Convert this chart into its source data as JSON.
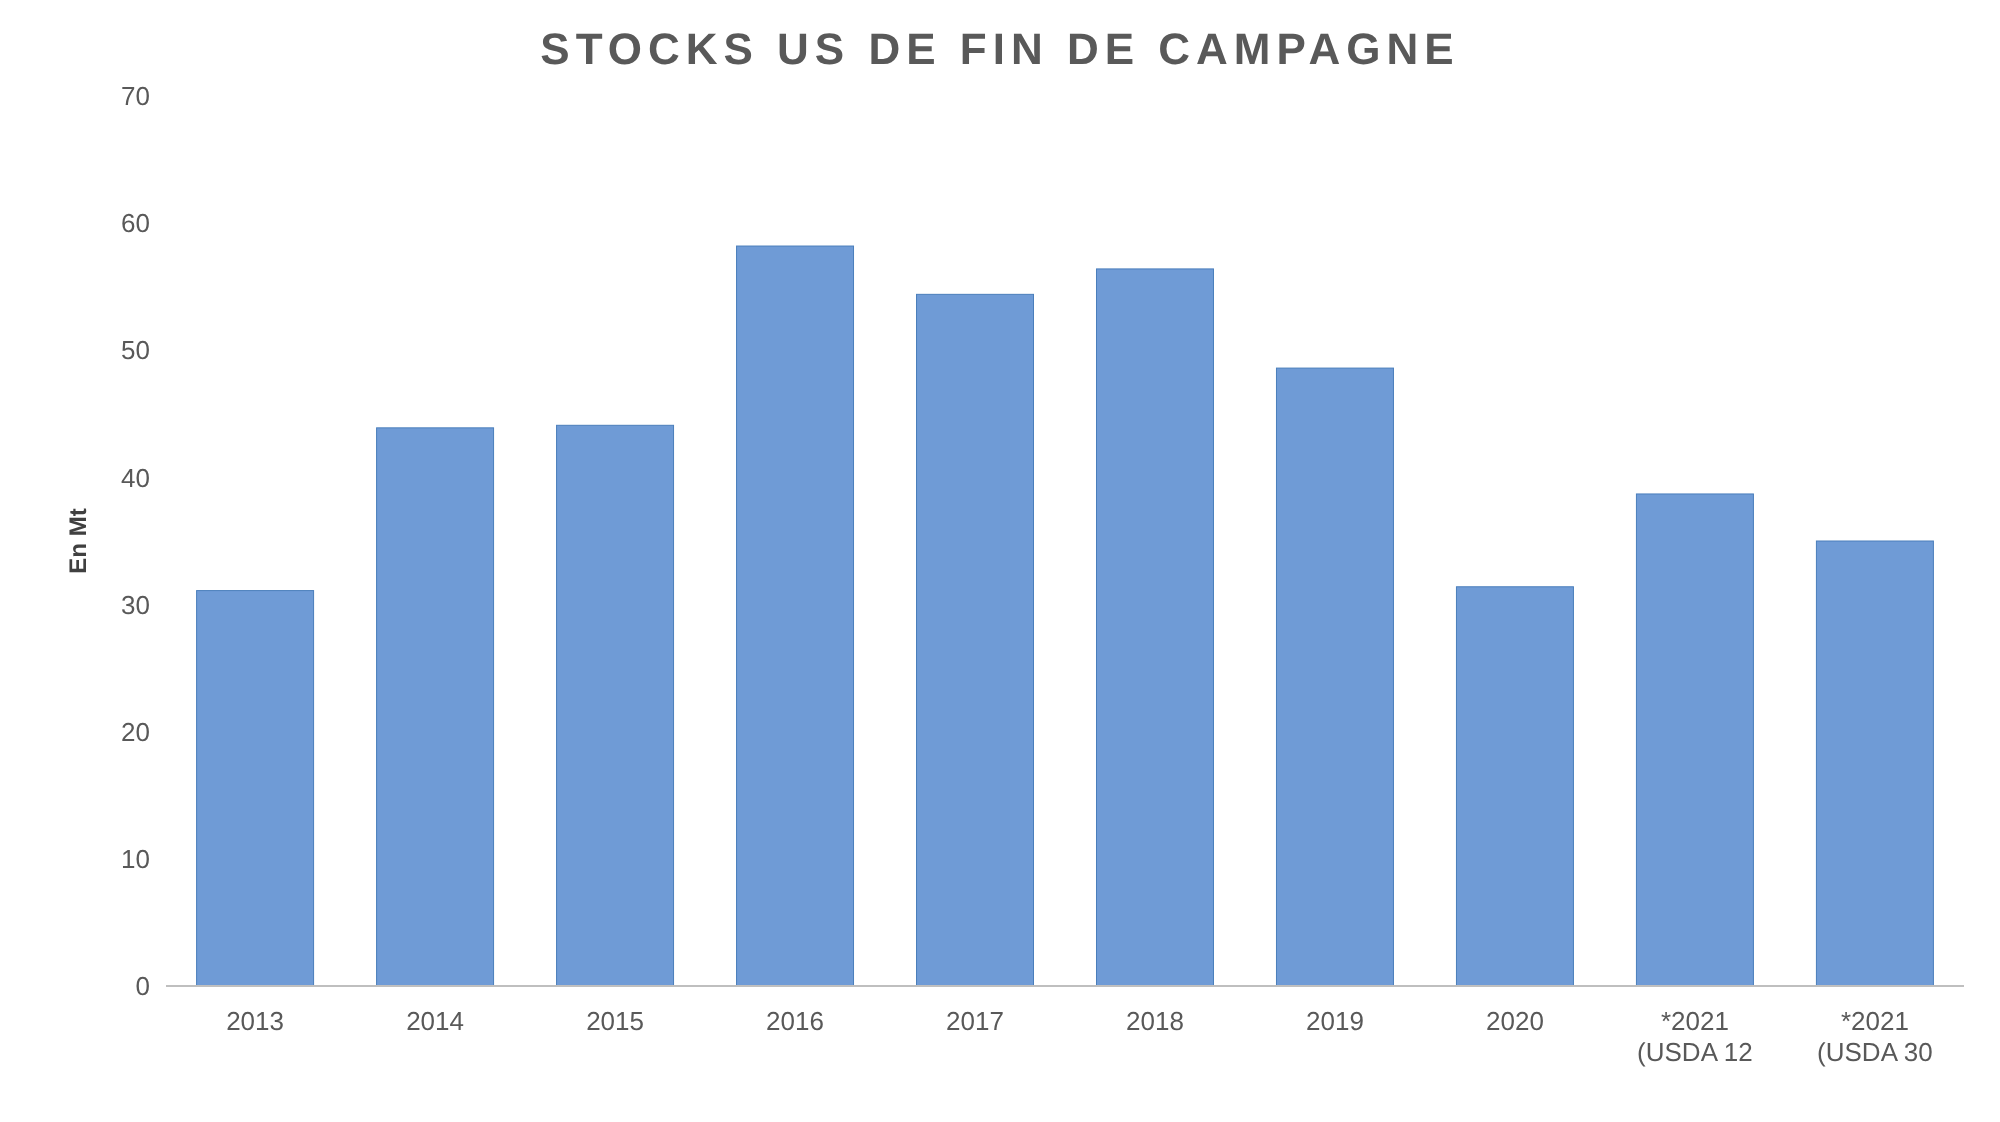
{
  "chart_data": {
    "type": "bar",
    "title": "STOCKS US DE FIN DE CAMPAGNE",
    "ylabel": "En Mt",
    "categories": [
      "2013",
      "2014",
      "2015",
      "2016",
      "2017",
      "2018",
      "2019",
      "2020",
      "*2021 (USDA 12",
      "*2021 (USDA 30"
    ],
    "values": [
      31.1,
      43.9,
      44.1,
      58.2,
      54.4,
      56.4,
      48.6,
      31.4,
      38.7,
      35.0
    ],
    "color": "#6f9bd6",
    "ylim": [
      0,
      70
    ],
    "yticks": [
      0,
      10,
      20,
      30,
      40,
      50,
      60,
      70
    ],
    "grid": false
  }
}
